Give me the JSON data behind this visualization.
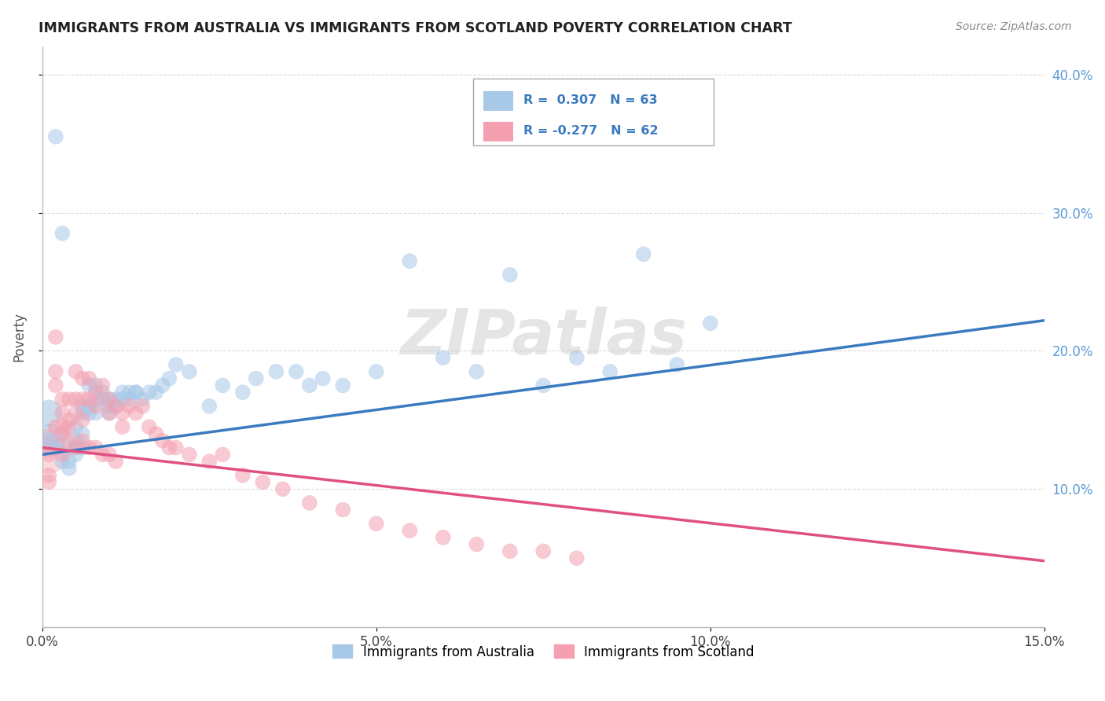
{
  "title": "IMMIGRANTS FROM AUSTRALIA VS IMMIGRANTS FROM SCOTLAND POVERTY CORRELATION CHART",
  "source": "Source: ZipAtlas.com",
  "ylabel": "Poverty",
  "xmin": 0.0,
  "xmax": 0.15,
  "ymin": 0.0,
  "ymax": 0.42,
  "yticks": [
    0.1,
    0.2,
    0.3,
    0.4
  ],
  "ytick_labels": [
    "10.0%",
    "20.0%",
    "30.0%",
    "40.0%"
  ],
  "xticks": [
    0.0,
    0.05,
    0.1,
    0.15
  ],
  "xtick_labels": [
    "0.0%",
    "5.0%",
    "10.0%",
    "15.0%"
  ],
  "r_australia": 0.307,
  "n_australia": 63,
  "r_scotland": -0.277,
  "n_scotland": 62,
  "color_australia": "#a8c8e8",
  "color_scotland": "#f4a0b0",
  "color_australia_large": "#8ab4d8",
  "color_trendline_australia": "#3a7abf",
  "color_trendline_scotland": "#e05080",
  "trendline_aus_y0": 0.125,
  "trendline_aus_y1": 0.222,
  "trendline_sco_y0": 0.13,
  "trendline_sco_y1": 0.048,
  "australia_x": [
    0.001,
    0.002,
    0.003,
    0.003,
    0.004,
    0.004,
    0.005,
    0.005,
    0.006,
    0.006,
    0.007,
    0.007,
    0.008,
    0.008,
    0.009,
    0.01,
    0.01,
    0.011,
    0.012,
    0.013,
    0.014,
    0.015,
    0.016,
    0.017,
    0.018,
    0.019,
    0.02,
    0.022,
    0.025,
    0.027,
    0.03,
    0.032,
    0.035,
    0.038,
    0.04,
    0.042,
    0.045,
    0.05,
    0.055,
    0.06,
    0.065,
    0.07,
    0.075,
    0.08,
    0.085,
    0.09,
    0.095,
    0.1,
    0.005,
    0.006,
    0.007,
    0.008,
    0.009,
    0.01,
    0.011,
    0.012,
    0.013,
    0.014,
    0.003,
    0.004,
    0.005,
    0.006,
    0.002
  ],
  "australia_y": [
    0.135,
    0.355,
    0.14,
    0.285,
    0.13,
    0.12,
    0.145,
    0.135,
    0.16,
    0.14,
    0.175,
    0.155,
    0.175,
    0.155,
    0.165,
    0.155,
    0.165,
    0.16,
    0.165,
    0.17,
    0.17,
    0.165,
    0.17,
    0.17,
    0.175,
    0.18,
    0.19,
    0.185,
    0.16,
    0.175,
    0.17,
    0.18,
    0.185,
    0.185,
    0.175,
    0.18,
    0.175,
    0.185,
    0.265,
    0.195,
    0.185,
    0.255,
    0.175,
    0.195,
    0.185,
    0.27,
    0.19,
    0.22,
    0.13,
    0.155,
    0.16,
    0.165,
    0.17,
    0.16,
    0.165,
    0.17,
    0.165,
    0.17,
    0.12,
    0.115,
    0.125,
    0.13,
    0.13
  ],
  "australia_size": [
    30,
    30,
    30,
    30,
    30,
    30,
    30,
    30,
    30,
    30,
    30,
    30,
    30,
    30,
    30,
    30,
    30,
    30,
    30,
    30,
    30,
    30,
    30,
    30,
    30,
    30,
    30,
    30,
    30,
    30,
    30,
    30,
    30,
    30,
    30,
    30,
    30,
    30,
    30,
    30,
    30,
    30,
    30,
    30,
    30,
    30,
    30,
    30,
    30,
    30,
    30,
    30,
    30,
    30,
    30,
    30,
    30,
    30,
    30,
    30,
    30,
    30,
    30
  ],
  "scotland_x": [
    0.001,
    0.001,
    0.002,
    0.002,
    0.003,
    0.003,
    0.003,
    0.004,
    0.004,
    0.005,
    0.005,
    0.005,
    0.006,
    0.006,
    0.006,
    0.007,
    0.007,
    0.008,
    0.008,
    0.009,
    0.01,
    0.01,
    0.011,
    0.012,
    0.012,
    0.013,
    0.014,
    0.015,
    0.016,
    0.017,
    0.018,
    0.019,
    0.02,
    0.022,
    0.025,
    0.027,
    0.03,
    0.033,
    0.036,
    0.04,
    0.045,
    0.05,
    0.055,
    0.06,
    0.065,
    0.07,
    0.075,
    0.08,
    0.002,
    0.003,
    0.004,
    0.005,
    0.006,
    0.007,
    0.008,
    0.009,
    0.01,
    0.011,
    0.004,
    0.003,
    0.002,
    0.001
  ],
  "scotland_y": [
    0.125,
    0.105,
    0.21,
    0.185,
    0.165,
    0.145,
    0.125,
    0.165,
    0.145,
    0.185,
    0.165,
    0.155,
    0.18,
    0.165,
    0.15,
    0.18,
    0.165,
    0.17,
    0.16,
    0.175,
    0.165,
    0.155,
    0.16,
    0.155,
    0.145,
    0.16,
    0.155,
    0.16,
    0.145,
    0.14,
    0.135,
    0.13,
    0.13,
    0.125,
    0.12,
    0.125,
    0.11,
    0.105,
    0.1,
    0.09,
    0.085,
    0.075,
    0.07,
    0.065,
    0.06,
    0.055,
    0.055,
    0.05,
    0.145,
    0.14,
    0.135,
    0.13,
    0.135,
    0.13,
    0.13,
    0.125,
    0.125,
    0.12,
    0.15,
    0.155,
    0.175,
    0.11
  ],
  "scotland_size": [
    30,
    30,
    30,
    30,
    30,
    30,
    30,
    30,
    30,
    30,
    30,
    30,
    30,
    30,
    30,
    30,
    30,
    30,
    30,
    30,
    30,
    30,
    30,
    30,
    30,
    30,
    30,
    30,
    30,
    30,
    30,
    30,
    30,
    30,
    30,
    30,
    30,
    30,
    30,
    30,
    30,
    30,
    30,
    30,
    30,
    30,
    30,
    30,
    30,
    30,
    30,
    30,
    30,
    30,
    30,
    30,
    30,
    30,
    30,
    30,
    30,
    30
  ],
  "legend_australia_label": "Immigrants from Australia",
  "legend_scotland_label": "Immigrants from Scotland",
  "watermark_text": "ZIPatlas",
  "background_color": "#ffffff",
  "grid_color": "#cccccc"
}
